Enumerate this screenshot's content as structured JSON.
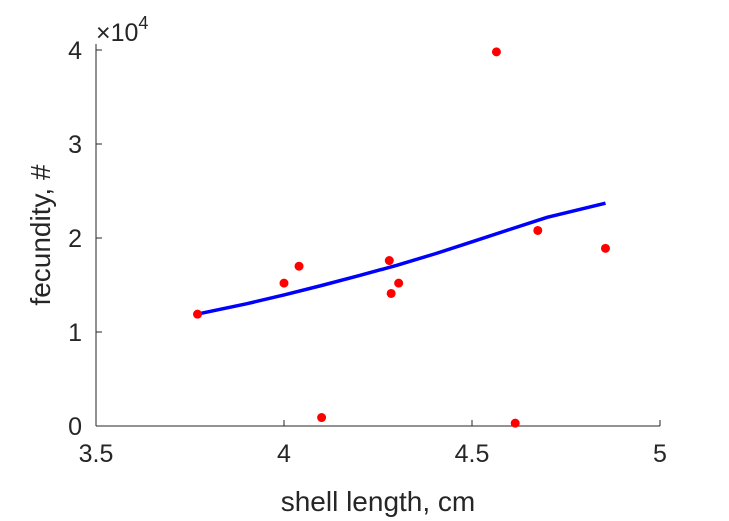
{
  "chart_data": {
    "type": "scatter",
    "xlabel": "shell length, cm",
    "ylabel": "fecundity, #",
    "y_multiplier_label": "×10",
    "y_multiplier_exponent": "4",
    "xlim": [
      3.5,
      5
    ],
    "ylim": [
      0,
      40000
    ],
    "x_ticks": [
      3.5,
      4,
      4.5,
      5
    ],
    "x_tick_labels": [
      "3.5",
      "4",
      "4.5",
      "5"
    ],
    "y_ticks": [
      0,
      10000,
      20000,
      30000,
      40000
    ],
    "y_tick_labels": [
      "0",
      "1",
      "2",
      "3",
      "4"
    ],
    "grid": false,
    "series": [
      {
        "kind": "scatter",
        "color": "#ff0000",
        "points": [
          {
            "x": 3.77,
            "y": 11900
          },
          {
            "x": 4.0,
            "y": 15200
          },
          {
            "x": 4.04,
            "y": 17000
          },
          {
            "x": 4.1,
            "y": 900
          },
          {
            "x": 4.28,
            "y": 17600
          },
          {
            "x": 4.285,
            "y": 14100
          },
          {
            "x": 4.305,
            "y": 15200
          },
          {
            "x": 4.565,
            "y": 39800
          },
          {
            "x": 4.615,
            "y": 300
          },
          {
            "x": 4.675,
            "y": 20800
          },
          {
            "x": 4.855,
            "y": 18900
          }
        ]
      },
      {
        "kind": "line",
        "color": "#0000ff",
        "points": [
          {
            "x": 3.77,
            "y": 11900
          },
          {
            "x": 3.9,
            "y": 13000
          },
          {
            "x": 4.0,
            "y": 13950
          },
          {
            "x": 4.1,
            "y": 14950
          },
          {
            "x": 4.2,
            "y": 16000
          },
          {
            "x": 4.3,
            "y": 17100
          },
          {
            "x": 4.4,
            "y": 18300
          },
          {
            "x": 4.5,
            "y": 19600
          },
          {
            "x": 4.6,
            "y": 20900
          },
          {
            "x": 4.7,
            "y": 22200
          },
          {
            "x": 4.855,
            "y": 23700
          }
        ]
      }
    ]
  }
}
